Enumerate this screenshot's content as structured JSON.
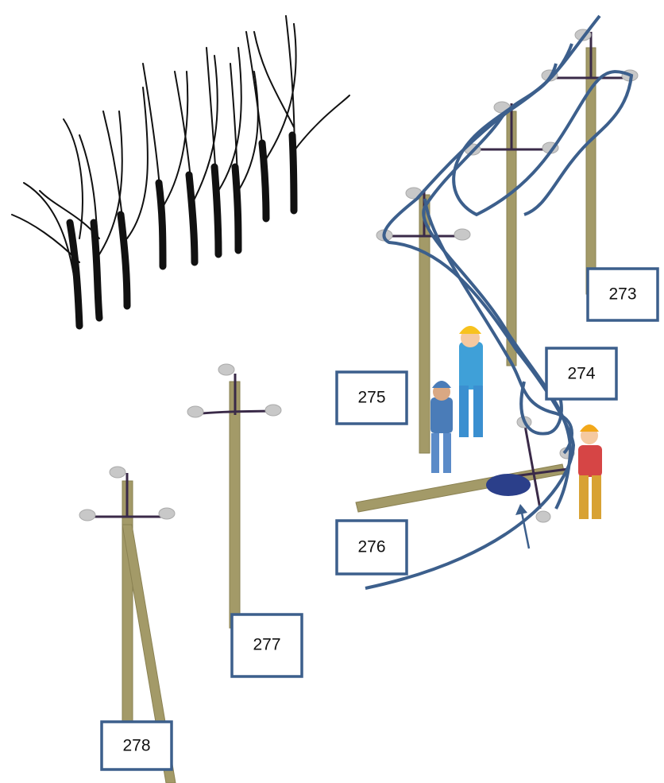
{
  "nodes": [
    {
      "label": "273"
    },
    {
      "label": "274"
    },
    {
      "label": "275"
    },
    {
      "label": "276"
    },
    {
      "label": "277"
    },
    {
      "label": "278"
    }
  ]
}
